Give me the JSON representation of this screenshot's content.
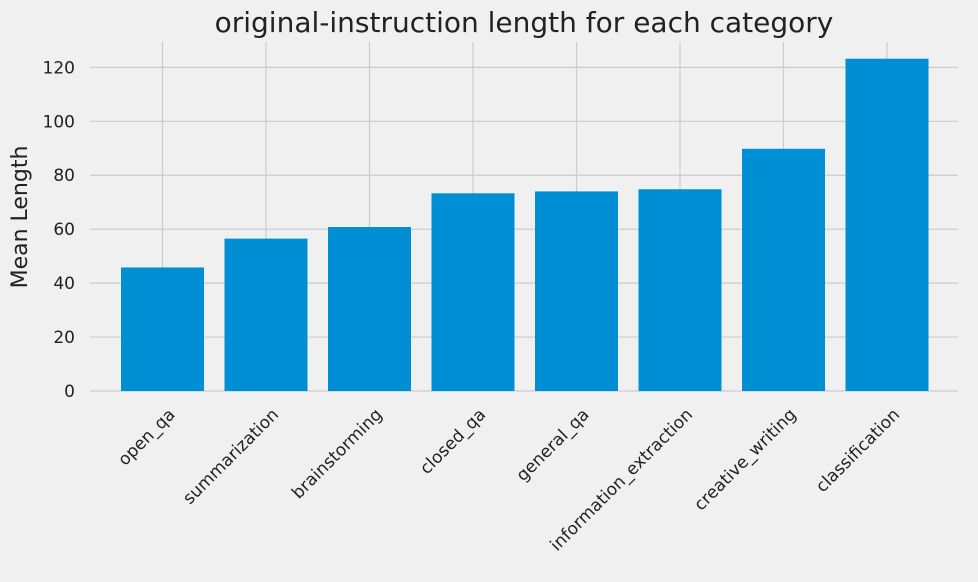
{
  "chart_data": {
    "type": "bar",
    "title": "original-instruction length for each category",
    "xlabel": "",
    "ylabel": "Mean Length",
    "categories": [
      "open_qa",
      "summarization",
      "brainstorming",
      "closed_qa",
      "general_qa",
      "information_extraction",
      "creative_writing",
      "classification"
    ],
    "values": [
      45.8,
      56.5,
      60.8,
      73.3,
      74.0,
      74.8,
      89.8,
      123.2
    ],
    "ylim": [
      0,
      129.4
    ],
    "yticks": [
      0,
      20,
      40,
      60,
      80,
      100,
      120
    ],
    "grid": true,
    "bar_color": "#008fd5",
    "background_color": "#f0f0f0"
  }
}
